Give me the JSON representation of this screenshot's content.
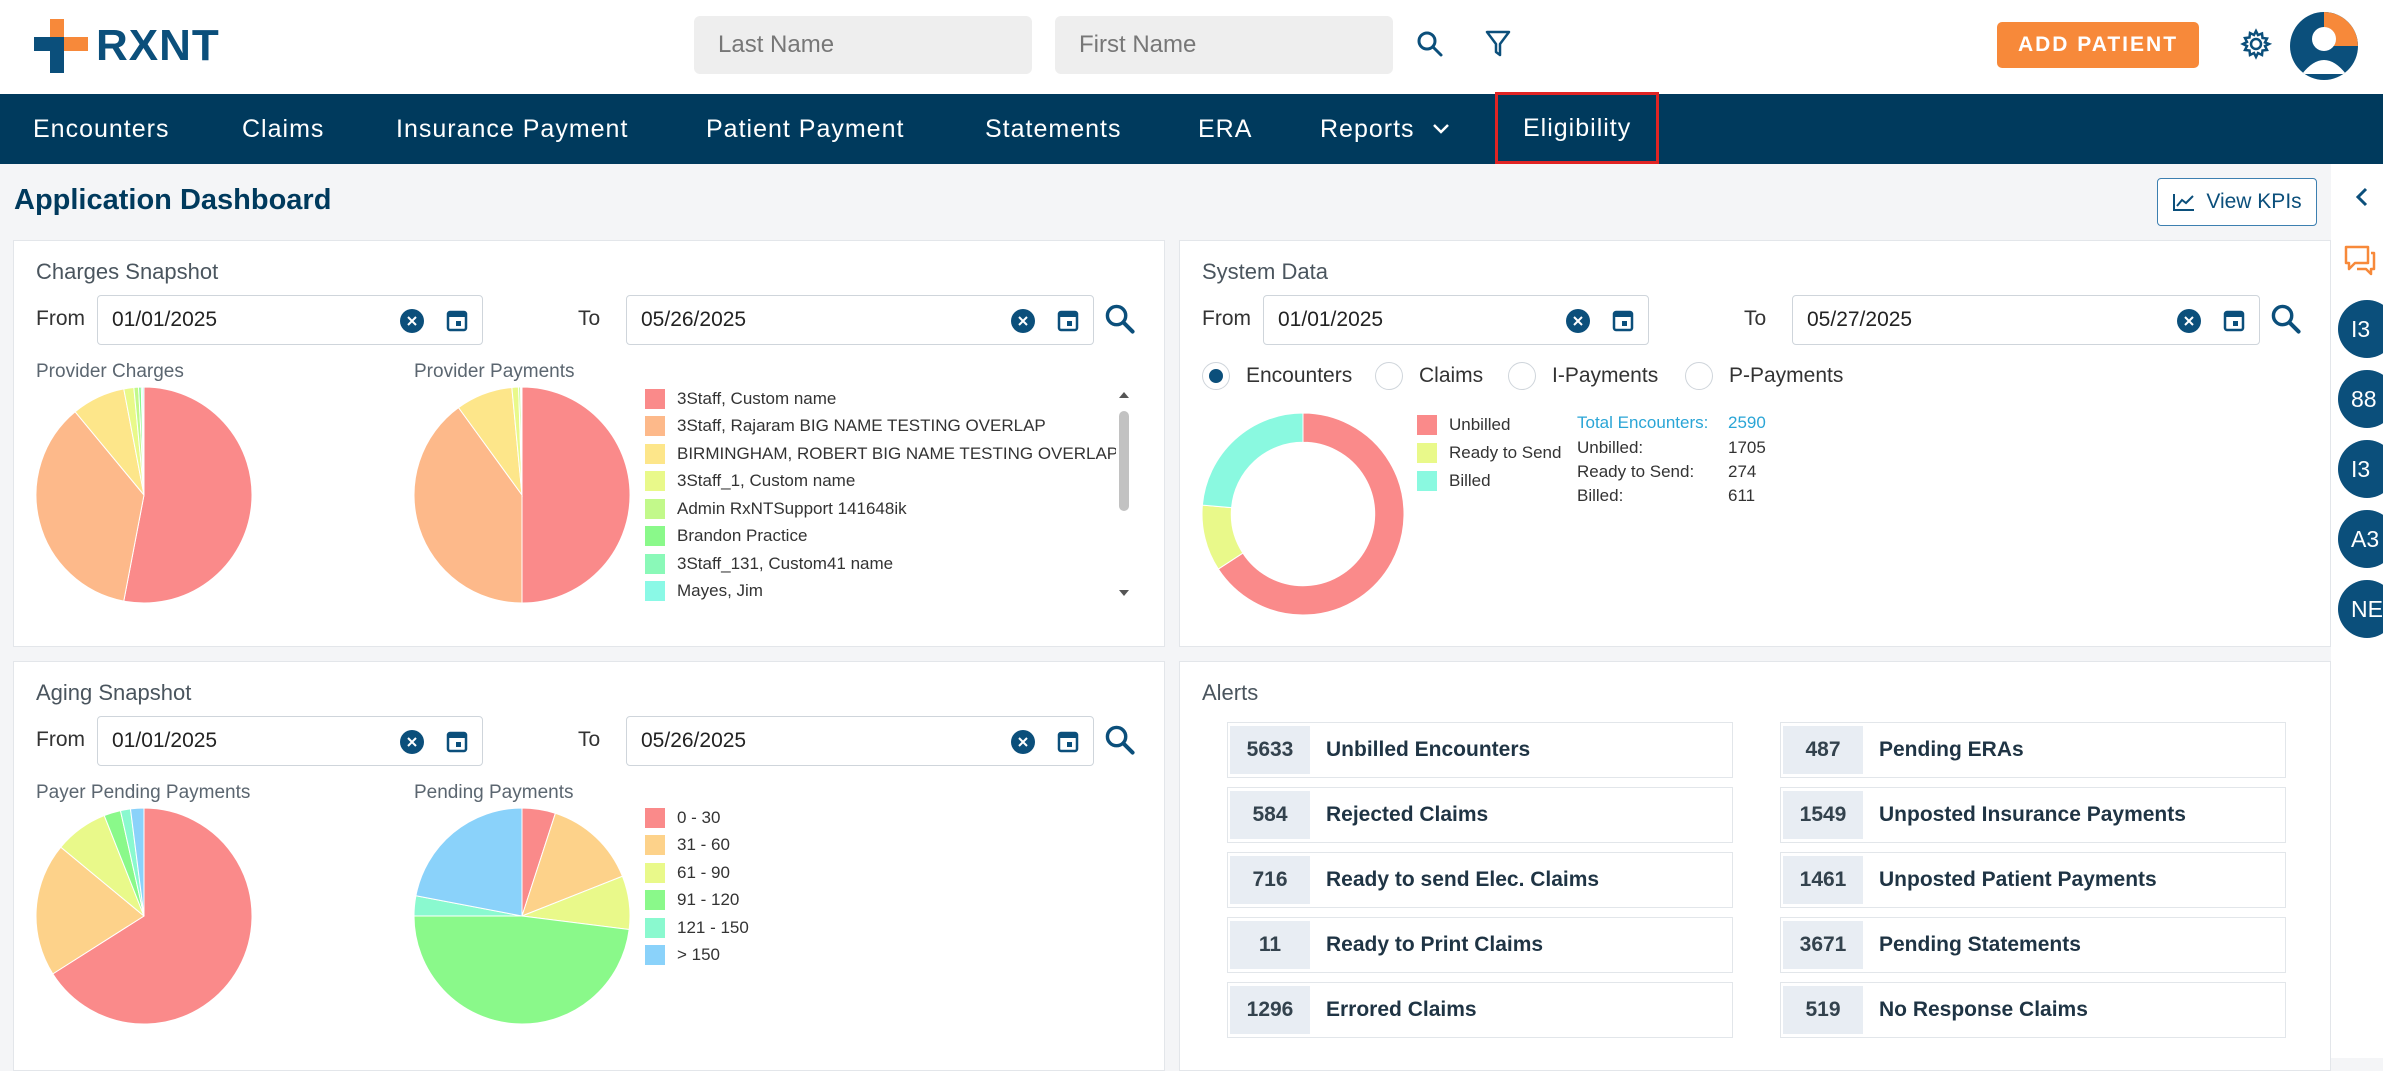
{
  "brand": {
    "name": "RXNT"
  },
  "header": {
    "last_name_placeholder": "Last Name",
    "first_name_placeholder": "First Name",
    "add_patient_label": "ADD PATIENT"
  },
  "nav": {
    "items": [
      "Encounters",
      "Claims",
      "Insurance Payment",
      "Patient Payment",
      "Statements",
      "ERA",
      "Reports",
      "Eligibility"
    ],
    "highlighted": "Eligibility"
  },
  "page": {
    "title": "Application Dashboard",
    "view_kpis_label": "View KPIs"
  },
  "charges_snapshot": {
    "title": "Charges Snapshot",
    "from_label": "From",
    "to_label": "To",
    "from_date": "01/01/2025",
    "to_date": "05/26/2025",
    "provider_charges_label": "Provider Charges",
    "provider_payments_label": "Provider Payments",
    "legend": [
      {
        "name": "3Staff, Custom name",
        "color": "#fa8a8a"
      },
      {
        "name": "3Staff, Rajaram BIG NAME TESTING OVERLAP",
        "color": "#fdb98a"
      },
      {
        "name": "BIRMINGHAM, ROBERT BIG NAME TESTING OVERLAP",
        "color": "#fde68a"
      },
      {
        "name": "3Staff_1, Custom name",
        "color": "#e9f98a"
      },
      {
        "name": "Admin RxNTSupport 141648ik",
        "color": "#c2f98a"
      },
      {
        "name": "Brandon Practice",
        "color": "#8af98a"
      },
      {
        "name": "3Staff_131, Custom41 name",
        "color": "#8af9b8"
      },
      {
        "name": "Mayes, Jim",
        "color": "#8af9e6"
      }
    ]
  },
  "system_data": {
    "title": "System Data",
    "from_label": "From",
    "to_label": "To",
    "from_date": "01/01/2025",
    "to_date": "05/27/2025",
    "radio_options": [
      "Encounters",
      "Claims",
      "I-Payments",
      "P-Payments"
    ],
    "selected_option": "Encounters",
    "legend": [
      {
        "name": "Unbilled",
        "color": "#fa8a8a"
      },
      {
        "name": "Ready to Send",
        "color": "#e9f98a"
      },
      {
        "name": "Billed",
        "color": "#8af9e0"
      }
    ],
    "stats": {
      "total_label": "Total Encounters:",
      "total_value": "2590",
      "unbilled_label": "Unbilled:",
      "unbilled_value": "1705",
      "ready_label": "Ready to Send:",
      "ready_value": "274",
      "billed_label": "Billed:",
      "billed_value": "611"
    }
  },
  "aging_snapshot": {
    "title": "Aging Snapshot",
    "from_label": "From",
    "to_label": "To",
    "from_date": "01/01/2025",
    "to_date": "05/26/2025",
    "payer_pending_label": "Payer Pending Payments",
    "pending_payments_label": "Pending Payments",
    "legend": [
      {
        "name": "0 - 30",
        "color": "#fa8a8a"
      },
      {
        "name": "31 - 60",
        "color": "#fdd28a"
      },
      {
        "name": "61 - 90",
        "color": "#e9f98a"
      },
      {
        "name": "91 - 120",
        "color": "#8af98a"
      },
      {
        "name": "121 - 150",
        "color": "#8af9cf"
      },
      {
        "name": "> 150",
        "color": "#8ad2fa"
      }
    ]
  },
  "alerts": {
    "title": "Alerts",
    "left": [
      {
        "count": "5633",
        "label": "Unbilled Encounters"
      },
      {
        "count": "584",
        "label": "Rejected Claims"
      },
      {
        "count": "716",
        "label": "Ready to send Elec. Claims"
      },
      {
        "count": "11",
        "label": "Ready to Print Claims"
      },
      {
        "count": "1296",
        "label": "Errored Claims"
      }
    ],
    "right": [
      {
        "count": "487",
        "label": "Pending ERAs"
      },
      {
        "count": "1549",
        "label": "Unposted Insurance Payments"
      },
      {
        "count": "1461",
        "label": "Unposted Patient Payments"
      },
      {
        "count": "3671",
        "label": "Pending Statements"
      },
      {
        "count": "519",
        "label": "No Response Claims"
      }
    ]
  },
  "rail": {
    "circles": [
      "I3",
      "88",
      "I3",
      "A3",
      "NE"
    ]
  },
  "chart_data": [
    {
      "type": "pie",
      "title": "Provider Charges",
      "categories": [
        "3Staff, Custom name",
        "3Staff, Rajaram BIG NAME TESTING OVERLAP",
        "BIRMINGHAM, ROBERT BIG NAME TESTING OVERLAP",
        "3Staff_1, Custom name",
        "Admin RxNTSupport 141648ik",
        "Brandon Practice",
        "3Staff_131, Custom41 name",
        "Mayes, Jim"
      ],
      "values": [
        53,
        36,
        8,
        1.5,
        0.7,
        0.4,
        0.2,
        0.2
      ]
    },
    {
      "type": "pie",
      "title": "Provider Payments",
      "categories": [
        "3Staff, Custom name",
        "3Staff, Rajaram BIG NAME TESTING OVERLAP",
        "BIRMINGHAM, ROBERT BIG NAME TESTING OVERLAP",
        "3Staff_1, Custom name",
        "Admin RxNTSupport 141648ik",
        "Brandon Practice",
        "3Staff_131, Custom41 name",
        "Mayes, Jim"
      ],
      "values": [
        50,
        40,
        8.5,
        1,
        0.3,
        0.1,
        0.05,
        0.05
      ]
    },
    {
      "type": "pie",
      "title": "Encounters",
      "categories": [
        "Unbilled",
        "Ready to Send",
        "Billed"
      ],
      "values": [
        1705,
        274,
        611
      ]
    },
    {
      "type": "pie",
      "title": "Payer Pending Payments",
      "categories": [
        "0 - 30",
        "31 - 60",
        "61 - 90",
        "91 - 120",
        "121 - 150",
        "> 150"
      ],
      "values": [
        66,
        20,
        8,
        2.5,
        1.5,
        2
      ]
    },
    {
      "type": "pie",
      "title": "Pending Payments",
      "categories": [
        "0 - 30",
        "31 - 60",
        "61 - 90",
        "91 - 120",
        "121 - 150",
        "> 150"
      ],
      "values": [
        5,
        14,
        8,
        48,
        3,
        22
      ]
    }
  ]
}
